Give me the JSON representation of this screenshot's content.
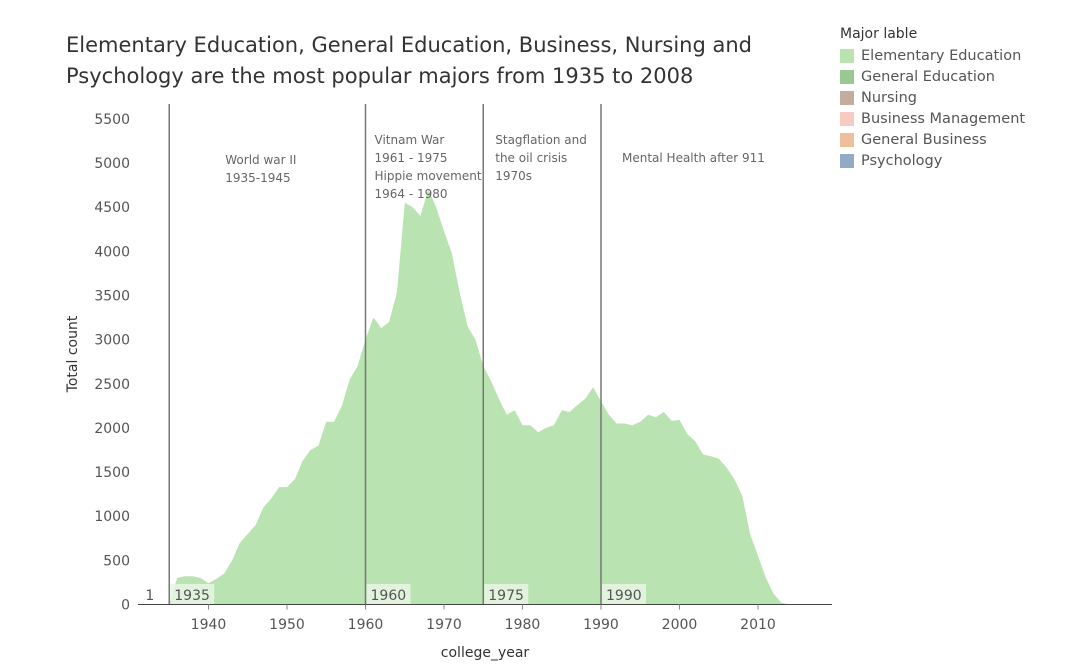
{
  "chart_data": {
    "type": "area",
    "title_lines": [
      "Elementary Education, General Education, Business, Nursing and",
      "Psychology are the most popular majors from 1935 to 2008"
    ],
    "xlabel": "college_year",
    "ylabel": "Total count",
    "xlim": [
      1930,
      2019
    ],
    "ylim": [
      0,
      5600
    ],
    "x_ticks": [
      1940,
      1950,
      1960,
      1970,
      1980,
      1990,
      2000,
      2010
    ],
    "y_ticks": [
      0,
      500,
      1000,
      1500,
      2000,
      2500,
      3000,
      3500,
      4000,
      4500,
      5000,
      5500
    ],
    "grid": false,
    "legend": {
      "title": "Major lable",
      "position": "top-right",
      "items": [
        {
          "name": "Elementary Education",
          "color": "#b9e3b1"
        },
        {
          "name": "General Education",
          "color": "#98c991"
        },
        {
          "name": "Nursing",
          "color": "#c4ada0"
        },
        {
          "name": "Business Management",
          "color": "#f8cbc2"
        },
        {
          "name": "General Business",
          "color": "#efbf9b"
        },
        {
          "name": "Psychology",
          "color": "#92aac7"
        }
      ]
    },
    "series": [
      {
        "color": "#b9e3b1",
        "x": [
          1935,
          1936,
          1937,
          1938,
          1939,
          1940,
          1941,
          1942,
          1943,
          1944,
          1945,
          1946,
          1947,
          1948,
          1949,
          1950,
          1951,
          1952,
          1953,
          1954,
          1955,
          1956,
          1957,
          1958,
          1959,
          1960,
          1961,
          1962,
          1963,
          1964,
          1965,
          1966,
          1967,
          1968,
          1969,
          1970,
          1971,
          1972,
          1973,
          1974,
          1975,
          1976,
          1977,
          1978,
          1979,
          1980,
          1981,
          1982,
          1983,
          1984,
          1985,
          1986,
          1987,
          1988,
          1989,
          1990,
          1991,
          1992,
          1993,
          1994,
          1995,
          1996,
          1997,
          1998,
          1999,
          2000,
          2001,
          2002,
          2003,
          2004,
          2005,
          2006,
          2007,
          2008,
          2009,
          2010,
          2011,
          2012,
          2013,
          2014
        ],
        "values": [
          1,
          300,
          320,
          320,
          300,
          240,
          290,
          350,
          500,
          700,
          800,
          900,
          1100,
          1200,
          1330,
          1330,
          1420,
          1630,
          1750,
          1800,
          2070,
          2070,
          2250,
          2550,
          2700,
          3000,
          3250,
          3130,
          3200,
          3530,
          4550,
          4500,
          4400,
          4700,
          4500,
          4230,
          3980,
          3530,
          3150,
          3000,
          2700,
          2530,
          2330,
          2150,
          2200,
          2030,
          2030,
          1950,
          2000,
          2030,
          2200,
          2180,
          2260,
          2330,
          2460,
          2300,
          2150,
          2050,
          2050,
          2030,
          2070,
          2150,
          2120,
          2180,
          2080,
          2090,
          1930,
          1850,
          1700,
          1680,
          1650,
          1550,
          1420,
          1230,
          800,
          550,
          300,
          120,
          20,
          0
        ]
      }
    ],
    "reference_lines": [
      {
        "x": 1935,
        "label": "1935",
        "text": [
          "World war II",
          "1935-1945"
        ]
      },
      {
        "x": 1960,
        "label": "1960",
        "text": [
          "Vitnam War",
          "1961 - 1975",
          "Hippie movement",
          "1964 - 1980"
        ]
      },
      {
        "x": 1975,
        "label": "1975",
        "text": [
          "Stagflation and",
          "the  oil crisis",
          "1970s"
        ]
      },
      {
        "x": 1990,
        "label": "1990",
        "text": [
          "Mental Health after 911"
        ]
      }
    ],
    "annotations": [
      {
        "x": 1931.5,
        "y": 0,
        "text": "1"
      }
    ]
  }
}
